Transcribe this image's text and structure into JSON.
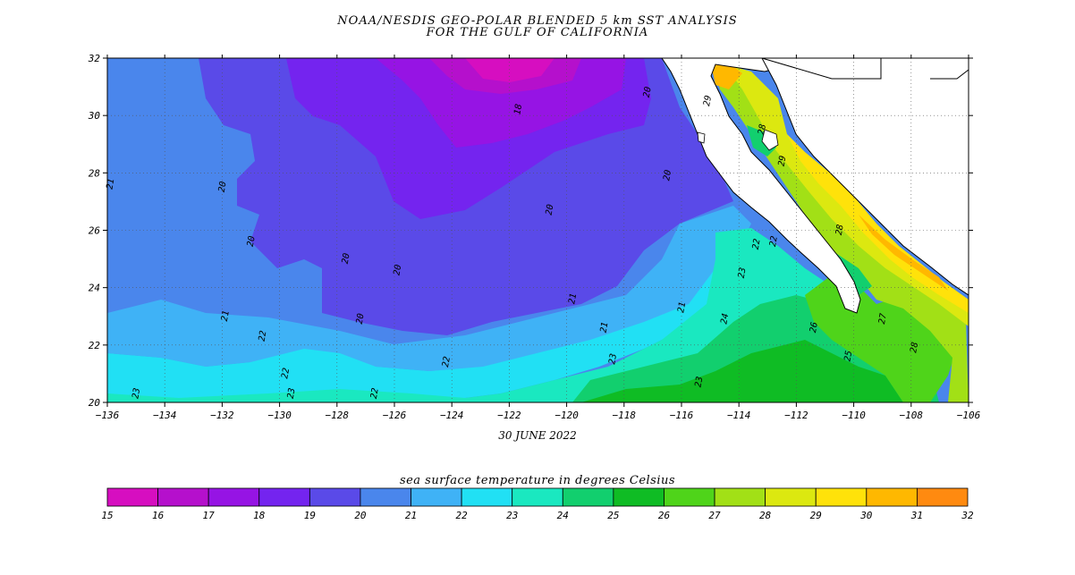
{
  "header": {
    "title_line1": "NOAA/NESDIS GEO-POLAR BLENDED 5 km SST ANALYSIS",
    "title_line2": "FOR THE GULF OF CALIFORNIA"
  },
  "map": {
    "date": "30 JUNE 2022",
    "lon_ticks": [
      -136,
      -134,
      -132,
      -130,
      -128,
      -126,
      -124,
      -122,
      -120,
      -118,
      -116,
      -114,
      -112,
      -110,
      -108,
      -106
    ],
    "lat_ticks": [
      20,
      22,
      24,
      26,
      28,
      30,
      32
    ],
    "lon_range": [
      -136,
      -106
    ],
    "lat_range": [
      20,
      32
    ],
    "contour_labels": [
      {
        "text": "21",
        "lon": -135.8,
        "lat": 27.6
      },
      {
        "text": "20",
        "lon": -131.9,
        "lat": 27.5
      },
      {
        "text": "20",
        "lon": -130.9,
        "lat": 25.6
      },
      {
        "text": "21",
        "lon": -131.8,
        "lat": 23.0
      },
      {
        "text": "22",
        "lon": -130.5,
        "lat": 22.3
      },
      {
        "text": "22",
        "lon": -129.7,
        "lat": 21.0
      },
      {
        "text": "23",
        "lon": -129.5,
        "lat": 20.3
      },
      {
        "text": "23",
        "lon": -134.9,
        "lat": 20.3
      },
      {
        "text": "20",
        "lon": -127.6,
        "lat": 25.0
      },
      {
        "text": "20",
        "lon": -127.1,
        "lat": 22.9
      },
      {
        "text": "20",
        "lon": -125.8,
        "lat": 24.6
      },
      {
        "text": "22",
        "lon": -126.6,
        "lat": 20.3
      },
      {
        "text": "22",
        "lon": -124.1,
        "lat": 21.4
      },
      {
        "text": "18",
        "lon": -121.6,
        "lat": 30.2
      },
      {
        "text": "20",
        "lon": -120.5,
        "lat": 26.7
      },
      {
        "text": "21",
        "lon": -119.7,
        "lat": 23.6
      },
      {
        "text": "21",
        "lon": -118.6,
        "lat": 22.6
      },
      {
        "text": "23",
        "lon": -118.3,
        "lat": 21.5
      },
      {
        "text": "20",
        "lon": -117.1,
        "lat": 30.8
      },
      {
        "text": "20",
        "lon": -116.4,
        "lat": 27.9
      },
      {
        "text": "21",
        "lon": -115.9,
        "lat": 23.3
      },
      {
        "text": "23",
        "lon": -113.8,
        "lat": 24.5
      },
      {
        "text": "24",
        "lon": -114.4,
        "lat": 22.9
      },
      {
        "text": "22",
        "lon": -113.3,
        "lat": 25.5
      },
      {
        "text": "22",
        "lon": -112.7,
        "lat": 25.6
      },
      {
        "text": "29",
        "lon": -115.0,
        "lat": 30.5
      },
      {
        "text": "28",
        "lon": -113.1,
        "lat": 29.5
      },
      {
        "text": "29",
        "lon": -112.4,
        "lat": 28.4
      },
      {
        "text": "28",
        "lon": -110.4,
        "lat": 26.0
      },
      {
        "text": "26",
        "lon": -111.3,
        "lat": 22.6
      },
      {
        "text": "25",
        "lon": -110.1,
        "lat": 21.6
      },
      {
        "text": "27",
        "lon": -108.9,
        "lat": 22.9
      },
      {
        "text": "28",
        "lon": -107.8,
        "lat": 21.9
      },
      {
        "text": "23",
        "lon": -115.3,
        "lat": 20.7
      }
    ]
  },
  "legend": {
    "title": "sea surface temperature in degrees Celsius",
    "ticks": [
      "15",
      "16",
      "17",
      "18",
      "19",
      "20",
      "21",
      "22",
      "23",
      "24",
      "25",
      "26",
      "27",
      "28",
      "29",
      "30",
      "31",
      "32"
    ],
    "colors": [
      "#d60ec0",
      "#b510cc",
      "#9614e4",
      "#7424ef",
      "#5a4ae8",
      "#4a86ec",
      "#3fb2f6",
      "#21e0f4",
      "#1ae8c0",
      "#12cf6e",
      "#0fbc24",
      "#4fd41a",
      "#a2e016",
      "#dce810",
      "#ffe20a",
      "#ffb800",
      "#ff8a10"
    ]
  }
}
